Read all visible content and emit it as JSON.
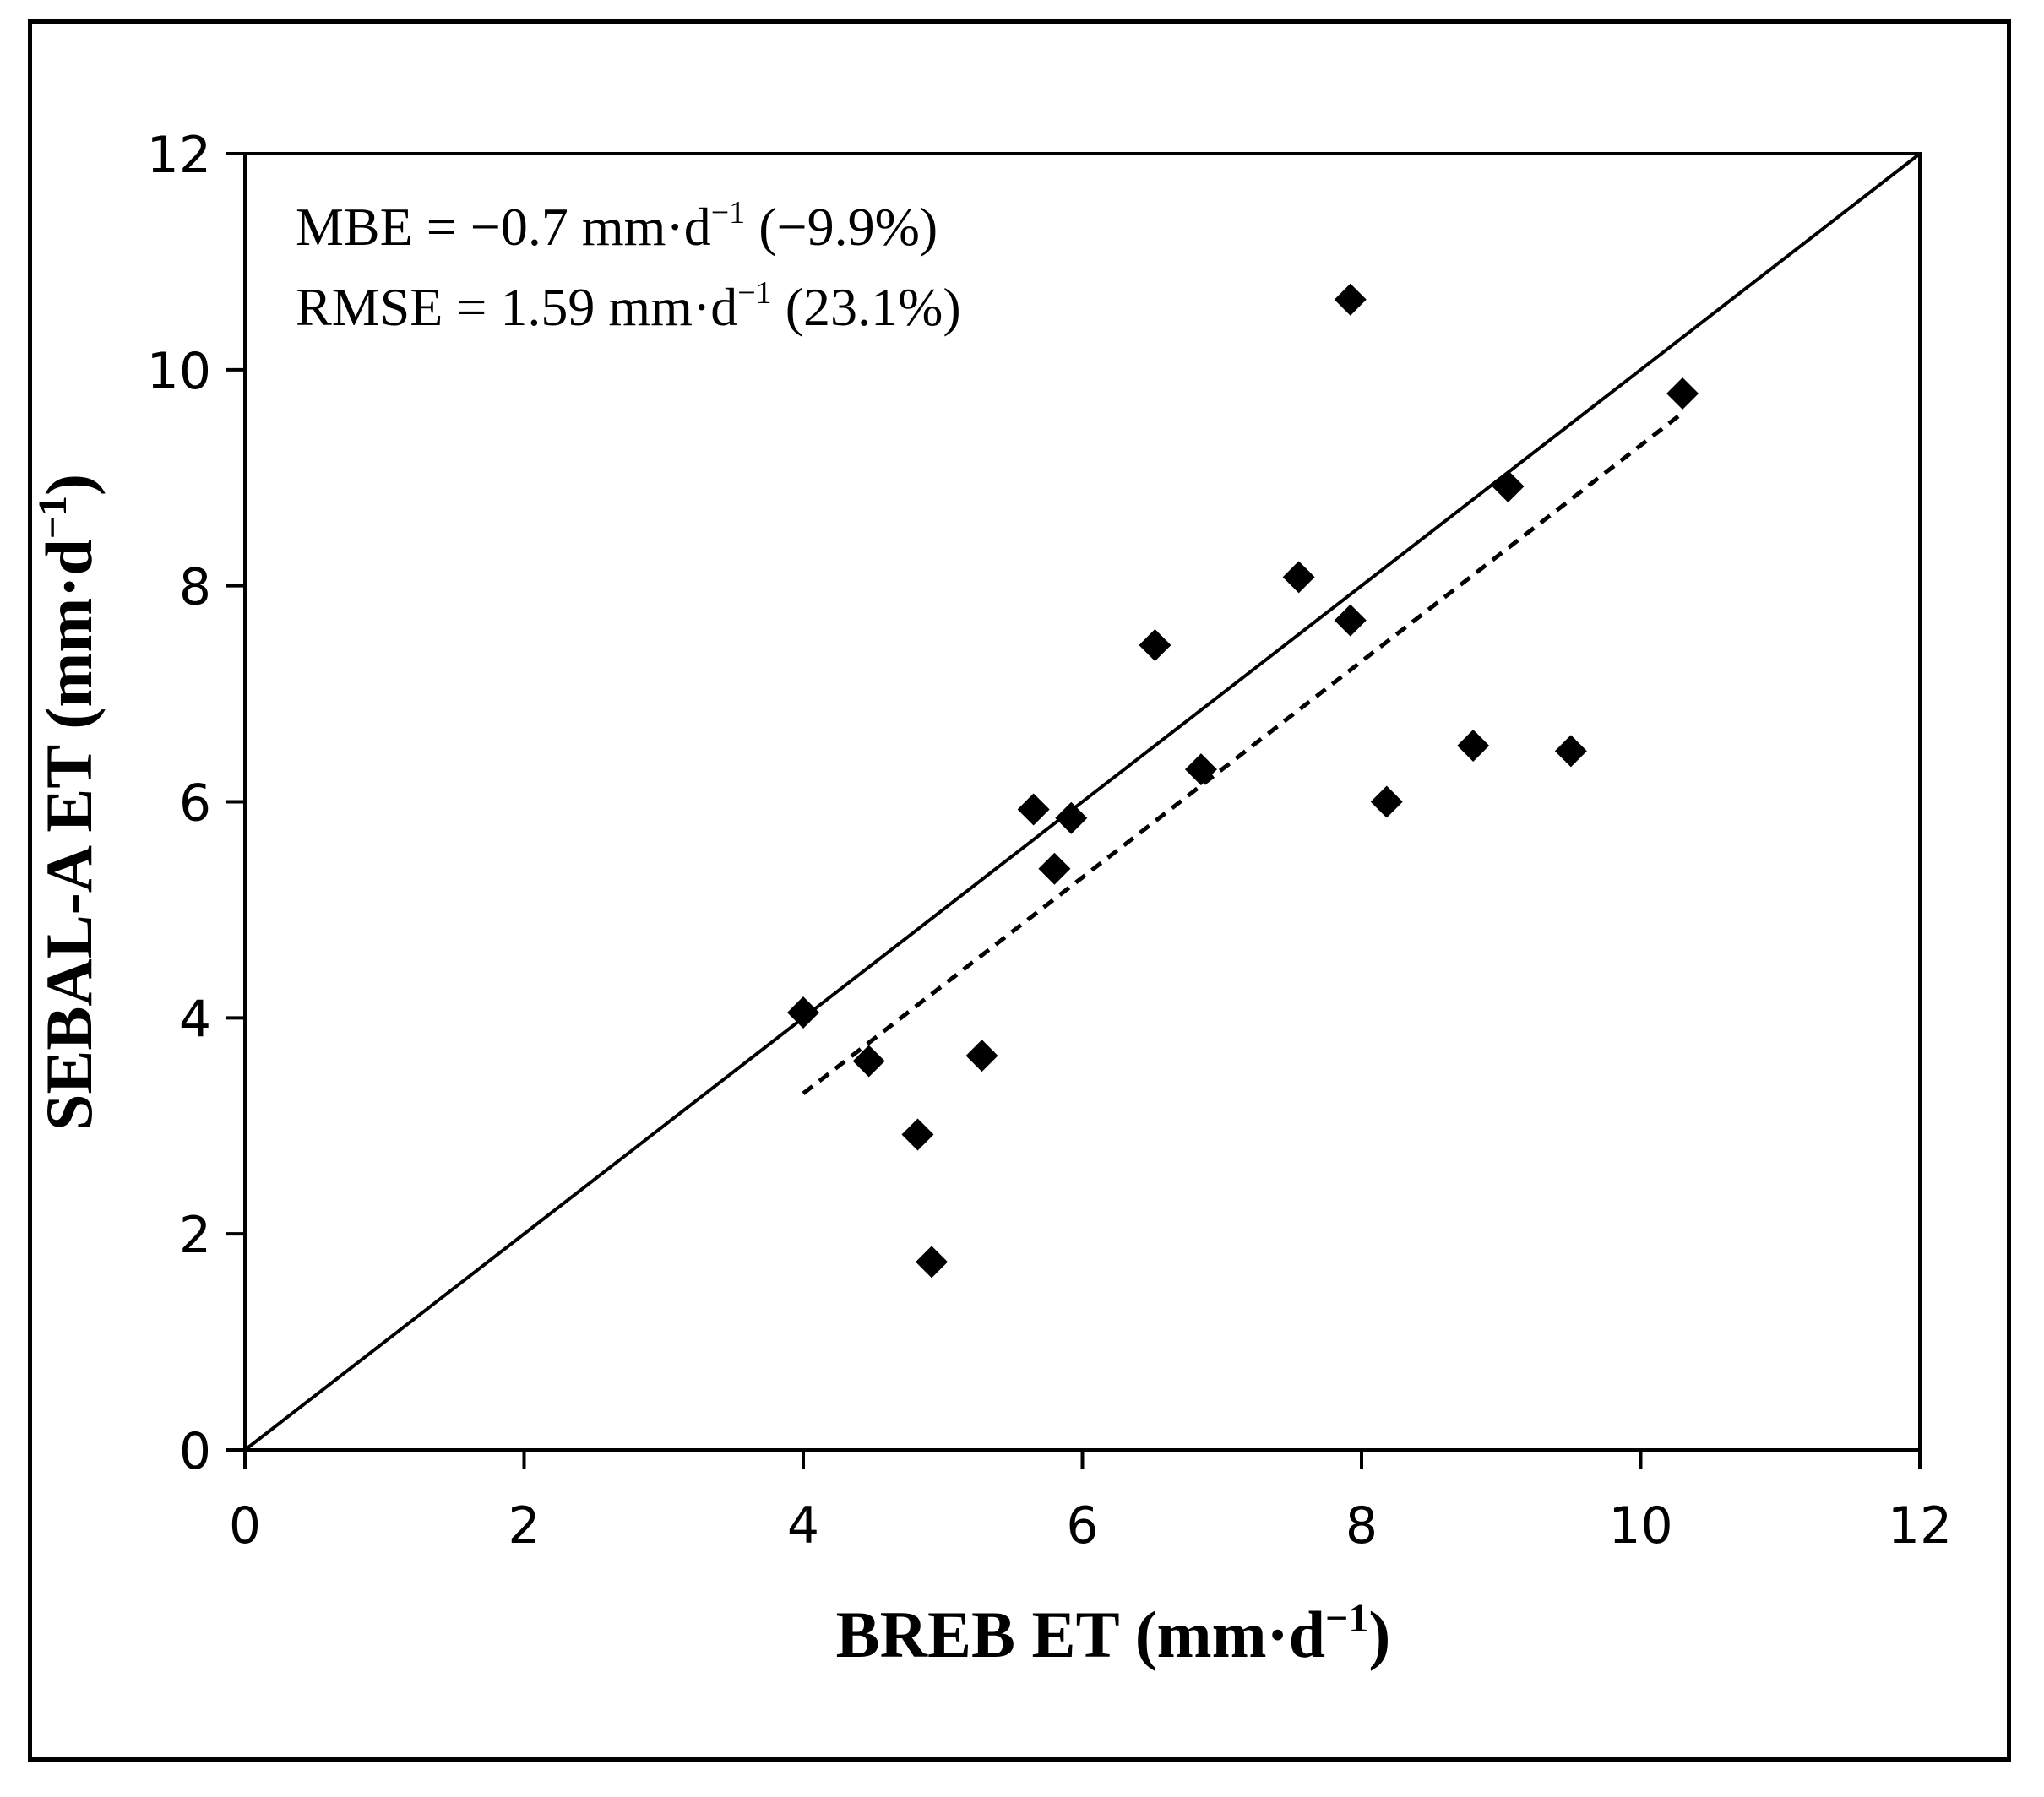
{
  "chart_data": {
    "type": "scatter",
    "title": "",
    "xlabel": "BREB ET (mm·d⁻¹)",
    "ylabel": "SEBAL-A ET (mm·d⁻¹)",
    "xlabel_parts": {
      "main": "BREB ET (mm·d",
      "sup": "−1",
      "close": ")"
    },
    "ylabel_parts": {
      "main": "SEBAL-A ET (mm·d",
      "sup": "−1",
      "close": ")"
    },
    "xlim": [
      0,
      12
    ],
    "ylim": [
      0,
      12
    ],
    "xticks": [
      0,
      2,
      4,
      6,
      8,
      10,
      12
    ],
    "yticks": [
      0,
      2,
      4,
      6,
      8,
      10,
      12
    ],
    "grid": false,
    "annotations": [
      {
        "name": "mbe",
        "main": "MBE = −0.7 mm·d",
        "sup": "−1",
        "tail": " (−9.9%)"
      },
      {
        "name": "rmse",
        "main": "RMSE = 1.59 mm·d",
        "sup": "−1",
        "tail": " (23.1%)"
      }
    ],
    "series": [
      {
        "name": "observations",
        "marker": "diamond",
        "color": "#000000",
        "points": [
          [
            4.0,
            4.05
          ],
          [
            4.47,
            3.6
          ],
          [
            4.82,
            2.92
          ],
          [
            4.92,
            1.74
          ],
          [
            5.28,
            3.65
          ],
          [
            5.65,
            5.93
          ],
          [
            5.8,
            5.38
          ],
          [
            5.92,
            5.85
          ],
          [
            6.52,
            7.45
          ],
          [
            6.85,
            6.3
          ],
          [
            7.55,
            8.08
          ],
          [
            7.92,
            7.68
          ],
          [
            7.92,
            10.65
          ],
          [
            8.18,
            6.0
          ],
          [
            8.8,
            6.52
          ],
          [
            9.05,
            8.92
          ],
          [
            9.5,
            6.47
          ],
          [
            10.3,
            9.78
          ]
        ]
      },
      {
        "name": "1:1 line",
        "line_style": "solid",
        "color": "#000000",
        "points": [
          [
            0,
            0
          ],
          [
            12,
            12
          ]
        ]
      },
      {
        "name": "regression line",
        "line_style": "dashed",
        "color": "#000000",
        "points": [
          [
            4.0,
            3.3
          ],
          [
            10.3,
            9.6
          ]
        ]
      }
    ]
  }
}
